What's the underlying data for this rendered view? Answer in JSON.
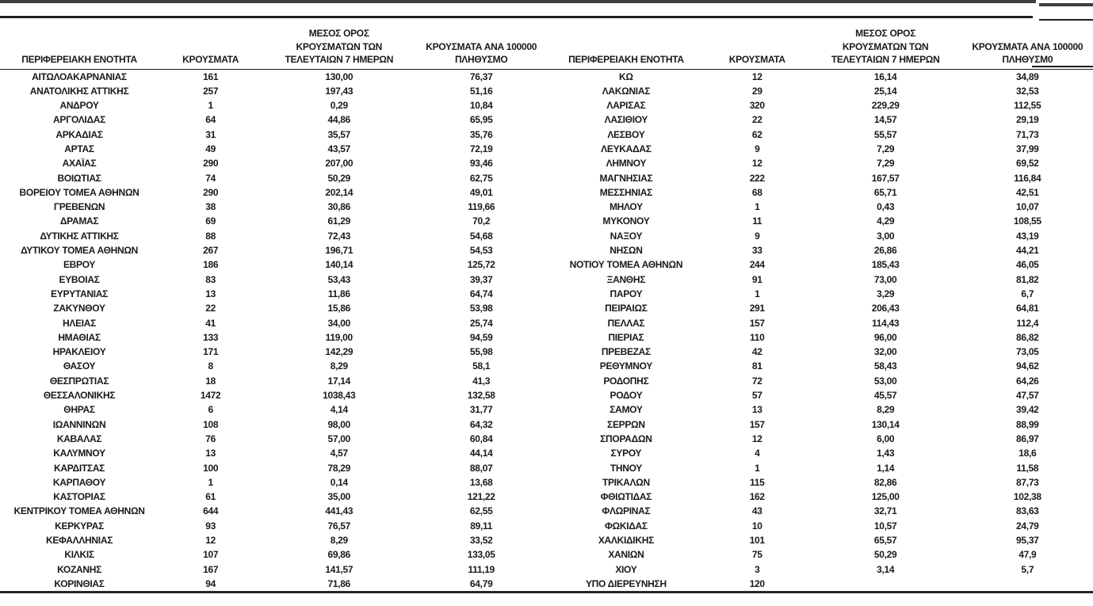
{
  "headers": {
    "region": "ΠΕΡΙΦΕΡΕΙΑΚΗ ΕΝΟΤΗΤΑ",
    "cases": "ΚΡΟΥΣΜΑΤΑ",
    "avg7": "ΜΕΣΟΣ ΟΡΟΣ\nΚΡΟΥΣΜΑΤΩΝ ΤΩΝ\nΤΕΛΕΥΤΑΙΩΝ 7 ΗΜΕΡΩΝ",
    "per100k": "ΚΡΟΥΣΜΑΤΑ ΑΝΑ 100000\nΠΛΗΘΥΣΜΟ",
    "per100k_right": "ΚΡΟΥΣΜΑΤΑ ΑΝΑ 100000\nΠΛΗΘΥΣΜ0"
  },
  "chart_data": {
    "type": "table",
    "columns": [
      "ΠΕΡΙΦΕΡΕΙΑΚΗ ΕΝΟΤΗΤΑ",
      "ΚΡΟΥΣΜΑΤΑ",
      "ΜΕΣΟΣ ΟΡΟΣ ΚΡΟΥΣΜΑΤΩΝ ΤΩΝ ΤΕΛΕΥΤΑΙΩΝ 7 ΗΜΕΡΩΝ",
      "ΚΡΟΥΣΜΑΤΑ ΑΝΑ 100000 ΠΛΗΘΥΣΜΟ"
    ],
    "rows_left": [
      [
        "ΑΙΤΩΛΟΑΚΑΡΝΑΝΙΑΣ",
        "161",
        "130,00",
        "76,37"
      ],
      [
        "ΑΝΑΤΟΛΙΚΗΣ ΑΤΤΙΚΗΣ",
        "257",
        "197,43",
        "51,16"
      ],
      [
        "ΑΝΔΡΟΥ",
        "1",
        "0,29",
        "10,84"
      ],
      [
        "ΑΡΓΟΛΙΔΑΣ",
        "64",
        "44,86",
        "65,95"
      ],
      [
        "ΑΡΚΑΔΙΑΣ",
        "31",
        "35,57",
        "35,76"
      ],
      [
        "ΑΡΤΑΣ",
        "49",
        "43,57",
        "72,19"
      ],
      [
        "ΑΧΑΪΑΣ",
        "290",
        "207,00",
        "93,46"
      ],
      [
        "ΒΟΙΩΤΙΑΣ",
        "74",
        "50,29",
        "62,75"
      ],
      [
        "ΒΟΡΕΙΟΥ ΤΟΜΕΑ ΑΘΗΝΩΝ",
        "290",
        "202,14",
        "49,01"
      ],
      [
        "ΓΡΕΒΕΝΩΝ",
        "38",
        "30,86",
        "119,66"
      ],
      [
        "ΔΡΑΜΑΣ",
        "69",
        "61,29",
        "70,2"
      ],
      [
        "ΔΥΤΙΚΗΣ ΑΤΤΙΚΗΣ",
        "88",
        "72,43",
        "54,68"
      ],
      [
        "ΔΥΤΙΚΟΥ ΤΟΜΕΑ ΑΘΗΝΩΝ",
        "267",
        "196,71",
        "54,53"
      ],
      [
        "ΕΒΡΟΥ",
        "186",
        "140,14",
        "125,72"
      ],
      [
        "ΕΥΒΟΙΑΣ",
        "83",
        "53,43",
        "39,37"
      ],
      [
        "ΕΥΡΥΤΑΝΙΑΣ",
        "13",
        "11,86",
        "64,74"
      ],
      [
        "ΖΑΚΥΝΘΟΥ",
        "22",
        "15,86",
        "53,98"
      ],
      [
        "ΗΛΕΙΑΣ",
        "41",
        "34,00",
        "25,74"
      ],
      [
        "ΗΜΑΘΙΑΣ",
        "133",
        "119,00",
        "94,59"
      ],
      [
        "ΗΡΑΚΛΕΙΟΥ",
        "171",
        "142,29",
        "55,98"
      ],
      [
        "ΘΑΣΟΥ",
        "8",
        "8,29",
        "58,1"
      ],
      [
        "ΘΕΣΠΡΩΤΙΑΣ",
        "18",
        "17,14",
        "41,3"
      ],
      [
        "ΘΕΣΣΑΛΟΝΙΚΗΣ",
        "1472",
        "1038,43",
        "132,58"
      ],
      [
        "ΘΗΡΑΣ",
        "6",
        "4,14",
        "31,77"
      ],
      [
        "ΙΩΑΝΝΙΝΩΝ",
        "108",
        "98,00",
        "64,32"
      ],
      [
        "ΚΑΒΑΛΑΣ",
        "76",
        "57,00",
        "60,84"
      ],
      [
        "ΚΑΛΥΜΝΟΥ",
        "13",
        "4,57",
        "44,14"
      ],
      [
        "ΚΑΡΔΙΤΣΑΣ",
        "100",
        "78,29",
        "88,07"
      ],
      [
        "ΚΑΡΠΑΘΟΥ",
        "1",
        "0,14",
        "13,68"
      ],
      [
        "ΚΑΣΤΟΡΙΑΣ",
        "61",
        "35,00",
        "121,22"
      ],
      [
        "ΚΕΝΤΡΙΚΟΥ ΤΟΜΕΑ ΑΘΗΝΩΝ",
        "644",
        "441,43",
        "62,55"
      ],
      [
        "ΚΕΡΚΥΡΑΣ",
        "93",
        "76,57",
        "89,11"
      ],
      [
        "ΚΕΦΑΛΛΗΝΙΑΣ",
        "12",
        "8,29",
        "33,52"
      ],
      [
        "ΚΙΛΚΙΣ",
        "107",
        "69,86",
        "133,05"
      ],
      [
        "ΚΟΖΑΝΗΣ",
        "167",
        "141,57",
        "111,19"
      ],
      [
        "ΚΟΡΙΝΘΙΑΣ",
        "94",
        "71,86",
        "64,79"
      ]
    ],
    "rows_right": [
      [
        "ΚΩ",
        "12",
        "16,14",
        "34,89"
      ],
      [
        "ΛΑΚΩΝΙΑΣ",
        "29",
        "25,14",
        "32,53"
      ],
      [
        "ΛΑΡΙΣΑΣ",
        "320",
        "229,29",
        "112,55"
      ],
      [
        "ΛΑΣΙΘΙΟΥ",
        "22",
        "14,57",
        "29,19"
      ],
      [
        "ΛΕΣΒΟΥ",
        "62",
        "55,57",
        "71,73"
      ],
      [
        "ΛΕΥΚΑΔΑΣ",
        "9",
        "7,29",
        "37,99"
      ],
      [
        "ΛΗΜΝΟΥ",
        "12",
        "7,29",
        "69,52"
      ],
      [
        "ΜΑΓΝΗΣΙΑΣ",
        "222",
        "167,57",
        "116,84"
      ],
      [
        "ΜΕΣΣΗΝΙΑΣ",
        "68",
        "65,71",
        "42,51"
      ],
      [
        "ΜΗΛΟΥ",
        "1",
        "0,43",
        "10,07"
      ],
      [
        "ΜΥΚΟΝΟΥ",
        "11",
        "4,29",
        "108,55"
      ],
      [
        "ΝΑΞΟΥ",
        "9",
        "3,00",
        "43,19"
      ],
      [
        "ΝΗΣΩΝ",
        "33",
        "26,86",
        "44,21"
      ],
      [
        "ΝΟΤΙΟΥ ΤΟΜΕΑ ΑΘΗΝΩΝ",
        "244",
        "185,43",
        "46,05"
      ],
      [
        "ΞΑΝΘΗΣ",
        "91",
        "73,00",
        "81,82"
      ],
      [
        "ΠΑΡΟΥ",
        "1",
        "3,29",
        "6,7"
      ],
      [
        "ΠΕΙΡΑΙΩΣ",
        "291",
        "206,43",
        "64,81"
      ],
      [
        "ΠΕΛΛΑΣ",
        "157",
        "114,43",
        "112,4"
      ],
      [
        "ΠΙΕΡΙΑΣ",
        "110",
        "96,00",
        "86,82"
      ],
      [
        "ΠΡΕΒΕΖΑΣ",
        "42",
        "32,00",
        "73,05"
      ],
      [
        "ΡΕΘΥΜΝΟΥ",
        "81",
        "58,43",
        "94,62"
      ],
      [
        "ΡΟΔΟΠΗΣ",
        "72",
        "53,00",
        "64,26"
      ],
      [
        "ΡΟΔΟΥ",
        "57",
        "45,57",
        "47,57"
      ],
      [
        "ΣΑΜΟΥ",
        "13",
        "8,29",
        "39,42"
      ],
      [
        "ΣΕΡΡΩΝ",
        "157",
        "130,14",
        "88,99"
      ],
      [
        "ΣΠΟΡΑΔΩΝ",
        "12",
        "6,00",
        "86,97"
      ],
      [
        "ΣΥΡΟΥ",
        "4",
        "1,43",
        "18,6"
      ],
      [
        "ΤΗΝΟΥ",
        "1",
        "1,14",
        "11,58"
      ],
      [
        "ΤΡΙΚΑΛΩΝ",
        "115",
        "82,86",
        "87,73"
      ],
      [
        "ΦΘΙΩΤΙΔΑΣ",
        "162",
        "125,00",
        "102,38"
      ],
      [
        "ΦΛΩΡΙΝΑΣ",
        "43",
        "32,71",
        "83,63"
      ],
      [
        "ΦΩΚΙΔΑΣ",
        "10",
        "10,57",
        "24,79"
      ],
      [
        "ΧΑΛΚΙΔΙΚΗΣ",
        "101",
        "65,57",
        "95,37"
      ],
      [
        "ΧΑΝΙΩΝ",
        "75",
        "50,29",
        "47,9"
      ],
      [
        "ΧΙΟΥ",
        "3",
        "3,14",
        "5,7"
      ],
      [
        "ΥΠΟ ΔΙΕΡΕΥΝΗΣΗ",
        "120",
        "",
        ""
      ]
    ]
  },
  "colors": {
    "text": "#1a1a1a",
    "rule_dark": "#1f1f1f",
    "rule_gray": "#3d3d3d",
    "background": "#ffffff"
  }
}
